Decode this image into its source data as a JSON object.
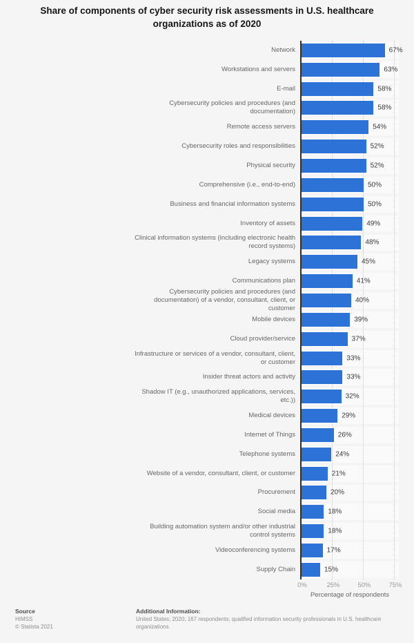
{
  "title": "Share of components of cyber security risk assessments in U.S. healthcare organizations as of 2020",
  "chart_data": {
    "type": "bar",
    "orientation": "horizontal",
    "title": "Share of components of cyber security risk assessments in U.S. healthcare organizations as of 2020",
    "categories": [
      "Network",
      "Workstations and servers",
      "E-mail",
      "Cybersecurity policies and procedures (and documentation)",
      "Remote access servers",
      "Cybersecurity roles and responsibilities",
      "Physical security",
      "Comprehensive (i.e., end-to-end)",
      "Business and financial information systems",
      "Inventory of assets",
      "Clinical information systems (including electronic health record systems)",
      "Legacy systems",
      "Communications plan",
      "Cybersecurity policies and procedures (and documentation) of a vendor, consultant, client, or customer",
      "Mobile devices",
      "Cloud provider/service",
      "Infrastructure or services of a vendor, consultant, client, or customer",
      "Insider threat actors and activity",
      "Shadow IT (e.g., unauthorized applications, services, etc.))",
      "Medical devices",
      "Internet of Things",
      "Telephone systems",
      "Website of a vendor, consultant, client, or customer",
      "Procurement",
      "Social media",
      "Building automation system and/or other industrial control systems",
      "Videoconferencing systems",
      "Supply Chain"
    ],
    "values": [
      67,
      63,
      58,
      58,
      54,
      52,
      52,
      50,
      50,
      49,
      48,
      45,
      41,
      40,
      39,
      37,
      33,
      33,
      32,
      29,
      26,
      24,
      21,
      20,
      18,
      18,
      17,
      15
    ],
    "value_suffix": "%",
    "xlabel": "Percentage of respondents",
    "xlim": [
      0,
      75
    ],
    "tick_values": [
      0,
      25,
      50,
      75
    ],
    "tick_labels": [
      "0%",
      "25%",
      "50%",
      "75%"
    ],
    "grid": "dotted vertical gridlines at ticks",
    "legend": "none",
    "bar_color": "#2d73d7",
    "background_color": "#f5f5f5",
    "row_band_color": "#fafafa"
  },
  "footer": {
    "source_label": "Source",
    "source_value": "HIMSS",
    "copyright": "© Statista 2021",
    "additional_info_label": "Additional Information:",
    "additional_info_value": "United States; 2020; 167 respondents; qualified information security professionals in U.S. healthcare organizations"
  }
}
